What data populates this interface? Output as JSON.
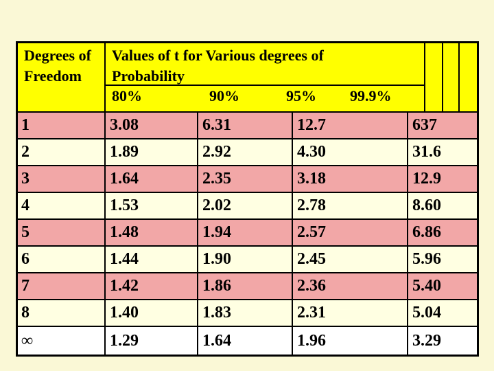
{
  "slide": {
    "background_color": "#FAF8D6",
    "table": {
      "border_color": "#000000",
      "header": {
        "bg_color": "#FFFF00",
        "df_line1": "Degrees of",
        "df_line2": "Freedom",
        "title_line1": "Values of t for Various degrees of",
        "title_line2": "Probability",
        "percents": [
          "80%",
          "90%",
          "95%",
          "99.9%"
        ]
      },
      "row_colors": {
        "pink": "#F2A7A7",
        "cream": "#FFFFE2",
        "white": "#FFFFFF"
      },
      "rows": [
        {
          "df": "1",
          "values": [
            "3.08",
            "6.31",
            "12.7",
            "637"
          ],
          "bg": "pink"
        },
        {
          "df": "2",
          "values": [
            "1.89",
            "2.92",
            "4.30",
            "31.6"
          ],
          "bg": "cream"
        },
        {
          "df": "3",
          "values": [
            "1.64",
            "2.35",
            "3.18",
            "12.9"
          ],
          "bg": "pink"
        },
        {
          "df": "4",
          "values": [
            "1.53",
            "2.02",
            "2.78",
            "8.60"
          ],
          "bg": "cream"
        },
        {
          "df": "5",
          "values": [
            "1.48",
            "1.94",
            "2.57",
            "6.86"
          ],
          "bg": "pink"
        },
        {
          "df": "6",
          "values": [
            "1.44",
            "1.90",
            "2.45",
            "5.96"
          ],
          "bg": "cream"
        },
        {
          "df": "7",
          "values": [
            "1.42",
            "1.86",
            "2.36",
            "5.40"
          ],
          "bg": "pink"
        },
        {
          "df": "8",
          "values": [
            "1.40",
            "1.83",
            "2.31",
            "5.04"
          ],
          "bg": "cream"
        },
        {
          "df": "∞",
          "values": [
            "1.29",
            "1.64",
            "1.96",
            "3.29"
          ],
          "bg": "white"
        }
      ]
    }
  },
  "chart_data": {
    "type": "table",
    "title": "Values of t for Various degrees of Probability",
    "columns": [
      "Degrees of Freedom",
      "80%",
      "90%",
      "95%",
      "99.9%"
    ],
    "rows": [
      [
        "1",
        3.08,
        6.31,
        12.7,
        637
      ],
      [
        "2",
        1.89,
        2.92,
        4.3,
        31.6
      ],
      [
        "3",
        1.64,
        2.35,
        3.18,
        12.9
      ],
      [
        "4",
        1.53,
        2.02,
        2.78,
        8.6
      ],
      [
        "5",
        1.48,
        1.94,
        2.57,
        6.86
      ],
      [
        "6",
        1.44,
        1.9,
        2.45,
        5.96
      ],
      [
        "7",
        1.42,
        1.86,
        2.36,
        5.4
      ],
      [
        "8",
        1.4,
        1.83,
        2.31,
        5.04
      ],
      [
        "∞",
        1.29,
        1.64,
        1.96,
        3.29
      ]
    ]
  }
}
